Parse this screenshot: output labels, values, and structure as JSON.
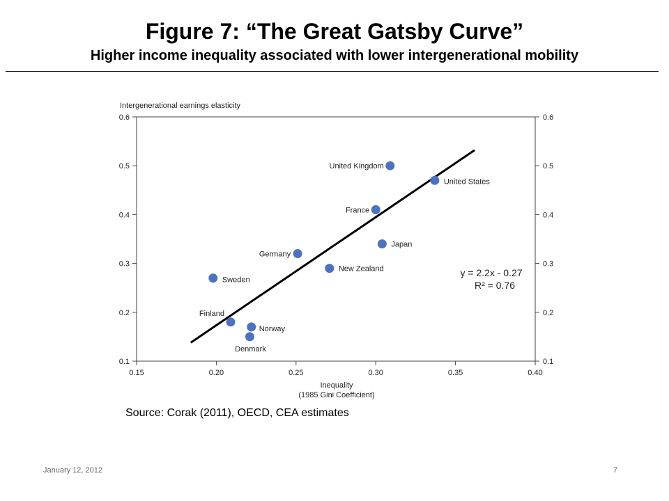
{
  "title": "Figure 7: “The Great Gatsby Curve”",
  "subtitle": "Higher income inequality associated with lower intergenerational mobility",
  "source": "Source: Corak (2011), OECD, CEA estimates",
  "footer": {
    "date": "January 12, 2012",
    "page": "7"
  },
  "chart_data": {
    "type": "scatter",
    "ylabel": "Intergenerational earnings elasticity",
    "xlabel": "Inequality",
    "xlabel_sub": "(1985 Gini Coefficient)",
    "xlim": [
      0.15,
      0.4
    ],
    "ylim": [
      0.1,
      0.6
    ],
    "x_ticks": [
      "0.15",
      "0.20",
      "0.25",
      "0.30",
      "0.35",
      "0.40"
    ],
    "y_ticks": [
      "0.6",
      "0.5",
      "0.4",
      "0.3",
      "0.2",
      "0.1"
    ],
    "right_axis": true,
    "grid": false,
    "points": [
      {
        "label": "United Kingdom",
        "x": 0.309,
        "y": 0.5
      },
      {
        "label": "United States",
        "x": 0.337,
        "y": 0.47
      },
      {
        "label": "France",
        "x": 0.3,
        "y": 0.41
      },
      {
        "label": "Japan",
        "x": 0.304,
        "y": 0.34
      },
      {
        "label": "Germany",
        "x": 0.251,
        "y": 0.32
      },
      {
        "label": "New Zealand",
        "x": 0.271,
        "y": 0.29
      },
      {
        "label": "Sweden",
        "x": 0.198,
        "y": 0.27
      },
      {
        "label": "Finland",
        "x": 0.209,
        "y": 0.18
      },
      {
        "label": "Norway",
        "x": 0.222,
        "y": 0.17
      },
      {
        "label": "Denmark",
        "x": 0.221,
        "y": 0.15
      }
    ],
    "fit": {
      "equation": "y = 2.2x - 0.27",
      "r2": "R² = 0.76",
      "x": [
        0.184,
        0.362
      ],
      "y": [
        0.138,
        0.532
      ]
    },
    "marker_color": "#4F72BE",
    "line_color": "#000000"
  }
}
